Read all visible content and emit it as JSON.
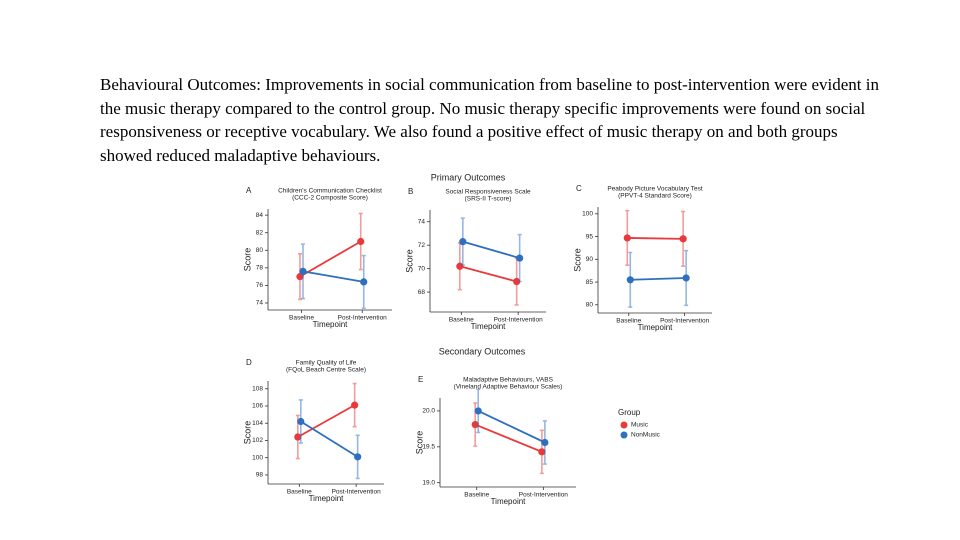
{
  "text": "Behavioural Outcomes: Improvements in social communication from baseline to post-intervention were evident in the music therapy compared to the control group.  No music therapy specific improvements were found on social responsiveness or receptive vocabulary. We also found a positive effect of music therapy on and both groups showed reduced maladaptive behaviours.",
  "headings": {
    "primary": "Primary Outcomes",
    "secondary": "Secondary Outcomes"
  },
  "legend_title": "Group",
  "chart_data": [
    {
      "type": "line",
      "panel": "A",
      "title": "Children's Communication Checklist",
      "subtitle": "(CCC-2 Composite Score)",
      "x_label": "Timepoint",
      "y_label": "Score",
      "categories": [
        "Baseline",
        "Post-Intervention"
      ],
      "ylim": [
        73.2,
        84.7
      ],
      "yticks": [
        74,
        76,
        78,
        80,
        82,
        84
      ],
      "series": [
        {
          "name": "Music",
          "color": "#e8393b",
          "values": [
            77.0,
            81.0
          ],
          "errors": [
            2.6,
            3.2
          ]
        },
        {
          "name": "NonMusic",
          "color": "#2f6fbf",
          "values": [
            77.6,
            76.4
          ],
          "errors": [
            3.1,
            3.0
          ]
        }
      ]
    },
    {
      "type": "line",
      "panel": "B",
      "title": "Social Responsiveness Scale",
      "subtitle": "(SRS-II T-score)",
      "x_label": "Timepoint",
      "y_label": "Score",
      "categories": [
        "Baseline",
        "Post-Intervention"
      ],
      "ylim": [
        66.3,
        75.0
      ],
      "yticks": [
        68,
        70,
        72,
        74
      ],
      "series": [
        {
          "name": "Music",
          "color": "#e8393b",
          "values": [
            70.2,
            68.9
          ],
          "errors": [
            2.0,
            2.0
          ]
        },
        {
          "name": "NonMusic",
          "color": "#2f6fbf",
          "values": [
            72.3,
            70.9
          ],
          "errors": [
            2.0,
            2.0
          ]
        }
      ]
    },
    {
      "type": "line",
      "panel": "C",
      "title": "Peabody Picture Vocabulary Test",
      "subtitle": "(PPVT-4 Standard Score)",
      "x_label": "Timepoint",
      "y_label": "Score",
      "categories": [
        "Baseline",
        "Post-Intervention"
      ],
      "ylim": [
        78.2,
        101.5
      ],
      "yticks": [
        80,
        85,
        90,
        95,
        100
      ],
      "series": [
        {
          "name": "Music",
          "color": "#e8393b",
          "values": [
            94.7,
            94.5
          ],
          "errors": [
            6.0,
            6.0
          ]
        },
        {
          "name": "NonMusic",
          "color": "#2f6fbf",
          "values": [
            85.5,
            85.9
          ],
          "errors": [
            6.0,
            6.0
          ]
        }
      ]
    },
    {
      "type": "line",
      "panel": "D",
      "title": "Family Quality of Life",
      "subtitle": "(FQoL Beach Centre Scale)",
      "x_label": "Timepoint",
      "y_label": "Score",
      "categories": [
        "Baseline",
        "Post-Intervention"
      ],
      "ylim": [
        96.95,
        108.9
      ],
      "yticks": [
        98,
        100,
        102,
        104,
        106,
        108
      ],
      "series": [
        {
          "name": "Music",
          "color": "#e8393b",
          "values": [
            102.4,
            106.1
          ],
          "errors": [
            2.5,
            2.5
          ]
        },
        {
          "name": "NonMusic",
          "color": "#2f6fbf",
          "values": [
            104.2,
            100.1
          ],
          "errors": [
            2.5,
            2.5
          ]
        }
      ]
    },
    {
      "type": "line",
      "panel": "E",
      "title": "Maladaptive Behaviours, VABS",
      "subtitle": "(Vineland Adaptive Behaviour Scales)",
      "x_label": "Timepoint",
      "y_label": "Score",
      "categories": [
        "Baseline",
        "Post-Intervention"
      ],
      "ylim": [
        18.94,
        20.18
      ],
      "yticks": [
        {
          "value": 19,
          "label": "19.0"
        },
        19.5,
        {
          "value": 20,
          "label": "20.0"
        }
      ],
      "series": [
        {
          "name": "Music",
          "color": "#e8393b",
          "values": [
            19.81,
            19.43
          ],
          "errors": [
            0.3,
            0.3
          ]
        },
        {
          "name": "NonMusic",
          "color": "#2f6fbf",
          "values": [
            20.0,
            19.56
          ],
          "errors": [
            0.3,
            0.3
          ]
        }
      ]
    }
  ]
}
